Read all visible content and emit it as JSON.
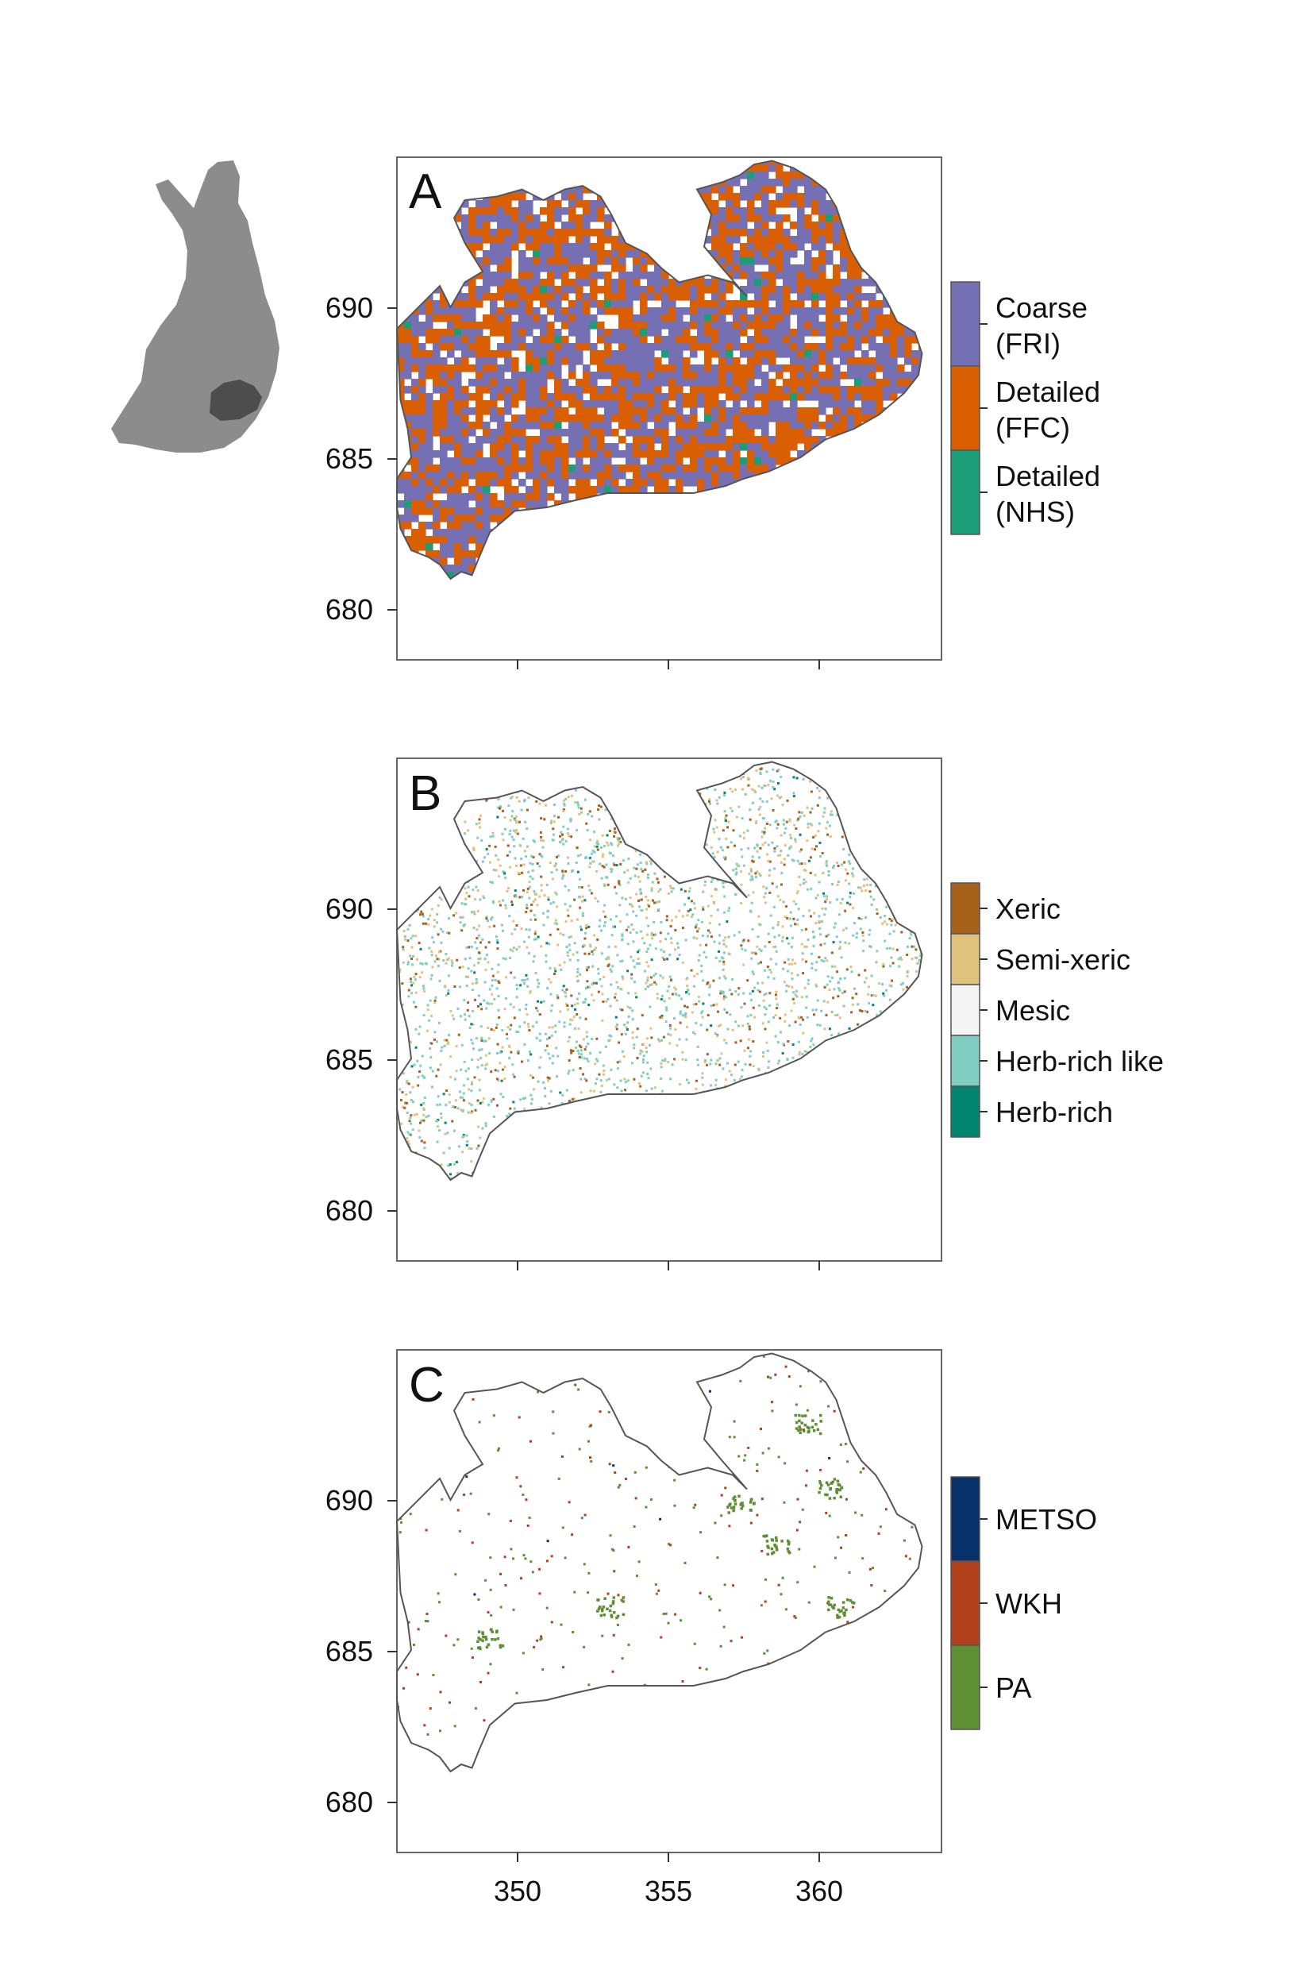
{
  "inset_map": {
    "country_color": "#8c8c8c",
    "region_color": "#4d4d4d"
  },
  "axes": {
    "y_ticks": [
      "690",
      "685",
      "680"
    ],
    "x_ticks": [
      "350",
      "355",
      "360"
    ]
  },
  "panels": [
    {
      "letter": "A",
      "legend": [
        {
          "line1": "Coarse",
          "line2": "(FRI)",
          "color": "#7570b3"
        },
        {
          "line1": "Detailed",
          "line2": "(FFC)",
          "color": "#d95f02"
        },
        {
          "line1": "Detailed",
          "line2": "(NHS)",
          "color": "#1b9e77"
        }
      ]
    },
    {
      "letter": "B",
      "legend": [
        {
          "label": "Xeric",
          "color": "#a6611a"
        },
        {
          "label": "Semi-xeric",
          "color": "#dfc27d"
        },
        {
          "label": "Mesic",
          "color": "#f5f5f5"
        },
        {
          "label": "Herb-rich like",
          "color": "#80cdc1"
        },
        {
          "label": "Herb-rich",
          "color": "#018571"
        }
      ]
    },
    {
      "letter": "C",
      "legend": [
        {
          "label": "METSO",
          "color": "#08306b"
        },
        {
          "label": "WKH",
          "color": "#b2401a"
        },
        {
          "label": "PA",
          "color": "#5e8f34"
        }
      ]
    }
  ]
}
